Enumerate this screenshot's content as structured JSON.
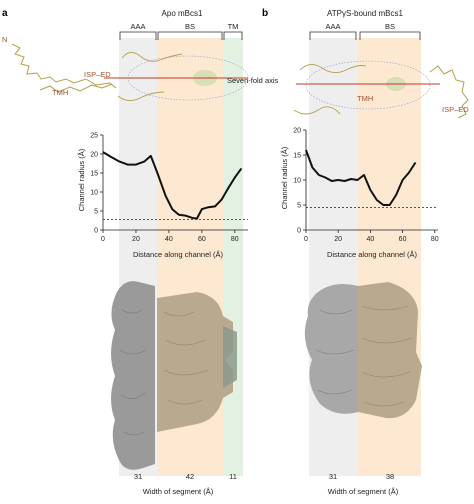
{
  "panels": {
    "a": {
      "letter": "a",
      "title": "Apo mBcs1",
      "segments": [
        "AAA",
        "BS",
        "TM"
      ],
      "annotations": {
        "n": "N",
        "isp_ed": "ISP–ED",
        "tmh": "TMH",
        "axis": "Seven-fold axis"
      },
      "widths": [
        "31",
        "42",
        "11"
      ],
      "width_label": "Width of segment (Å)"
    },
    "b": {
      "letter": "b",
      "title": "ATPγS-bound mBcs1",
      "segments": [
        "AAA",
        "BS"
      ],
      "annotations": {
        "tmh": "TMH",
        "isp_ed": "ISP–ED"
      },
      "widths": [
        "31",
        "38"
      ],
      "width_label": "Width of segment (Å)"
    }
  },
  "colors": {
    "aaa_band": "#eeeeee",
    "bs_band": "#fde9d2",
    "tm_band": "#e3f1e3",
    "axis_line": "#c0392b",
    "strand": "#b5a04a",
    "map_gray": "#9a9a9a",
    "map_tan": "#b9a98f"
  },
  "chart_data": [
    {
      "type": "line",
      "ylabel": "Channel radius (Å)",
      "xlabel": "Distance along channel (Å)",
      "xlim": [
        0,
        88
      ],
      "ylim": [
        0,
        25
      ],
      "xticks": [
        0,
        20,
        40,
        60,
        80
      ],
      "yticks": [
        0,
        5,
        10,
        15,
        20,
        25
      ],
      "threshold": 2.8,
      "x": [
        0,
        5,
        10,
        15,
        20,
        25,
        29,
        33,
        38,
        42,
        46,
        50,
        54,
        57,
        60,
        64,
        68,
        72,
        76,
        80,
        84
      ],
      "y": [
        20.5,
        19.2,
        18,
        17.2,
        17.2,
        18,
        19.5,
        15,
        9,
        5.5,
        4,
        3.8,
        3.2,
        3,
        5.5,
        6,
        6.2,
        8,
        11,
        13.8,
        16.2
      ]
    },
    {
      "type": "line",
      "ylabel": "Channel radius (Å)",
      "xlabel": "Distance along channel (Å)",
      "xlim": [
        0,
        82
      ],
      "ylim": [
        0,
        20
      ],
      "xticks": [
        0,
        20,
        40,
        60,
        80
      ],
      "yticks": [
        0,
        5,
        10,
        15,
        20
      ],
      "threshold": 4.5,
      "x": [
        0,
        4,
        8,
        12,
        16,
        20,
        24,
        28,
        32,
        36,
        40,
        44,
        48,
        52,
        56,
        60,
        64,
        68
      ],
      "y": [
        16,
        12.5,
        11,
        10.5,
        9.8,
        10,
        9.8,
        10.2,
        10,
        11,
        8,
        6,
        5,
        5,
        7,
        10,
        11.5,
        13.5
      ]
    }
  ]
}
